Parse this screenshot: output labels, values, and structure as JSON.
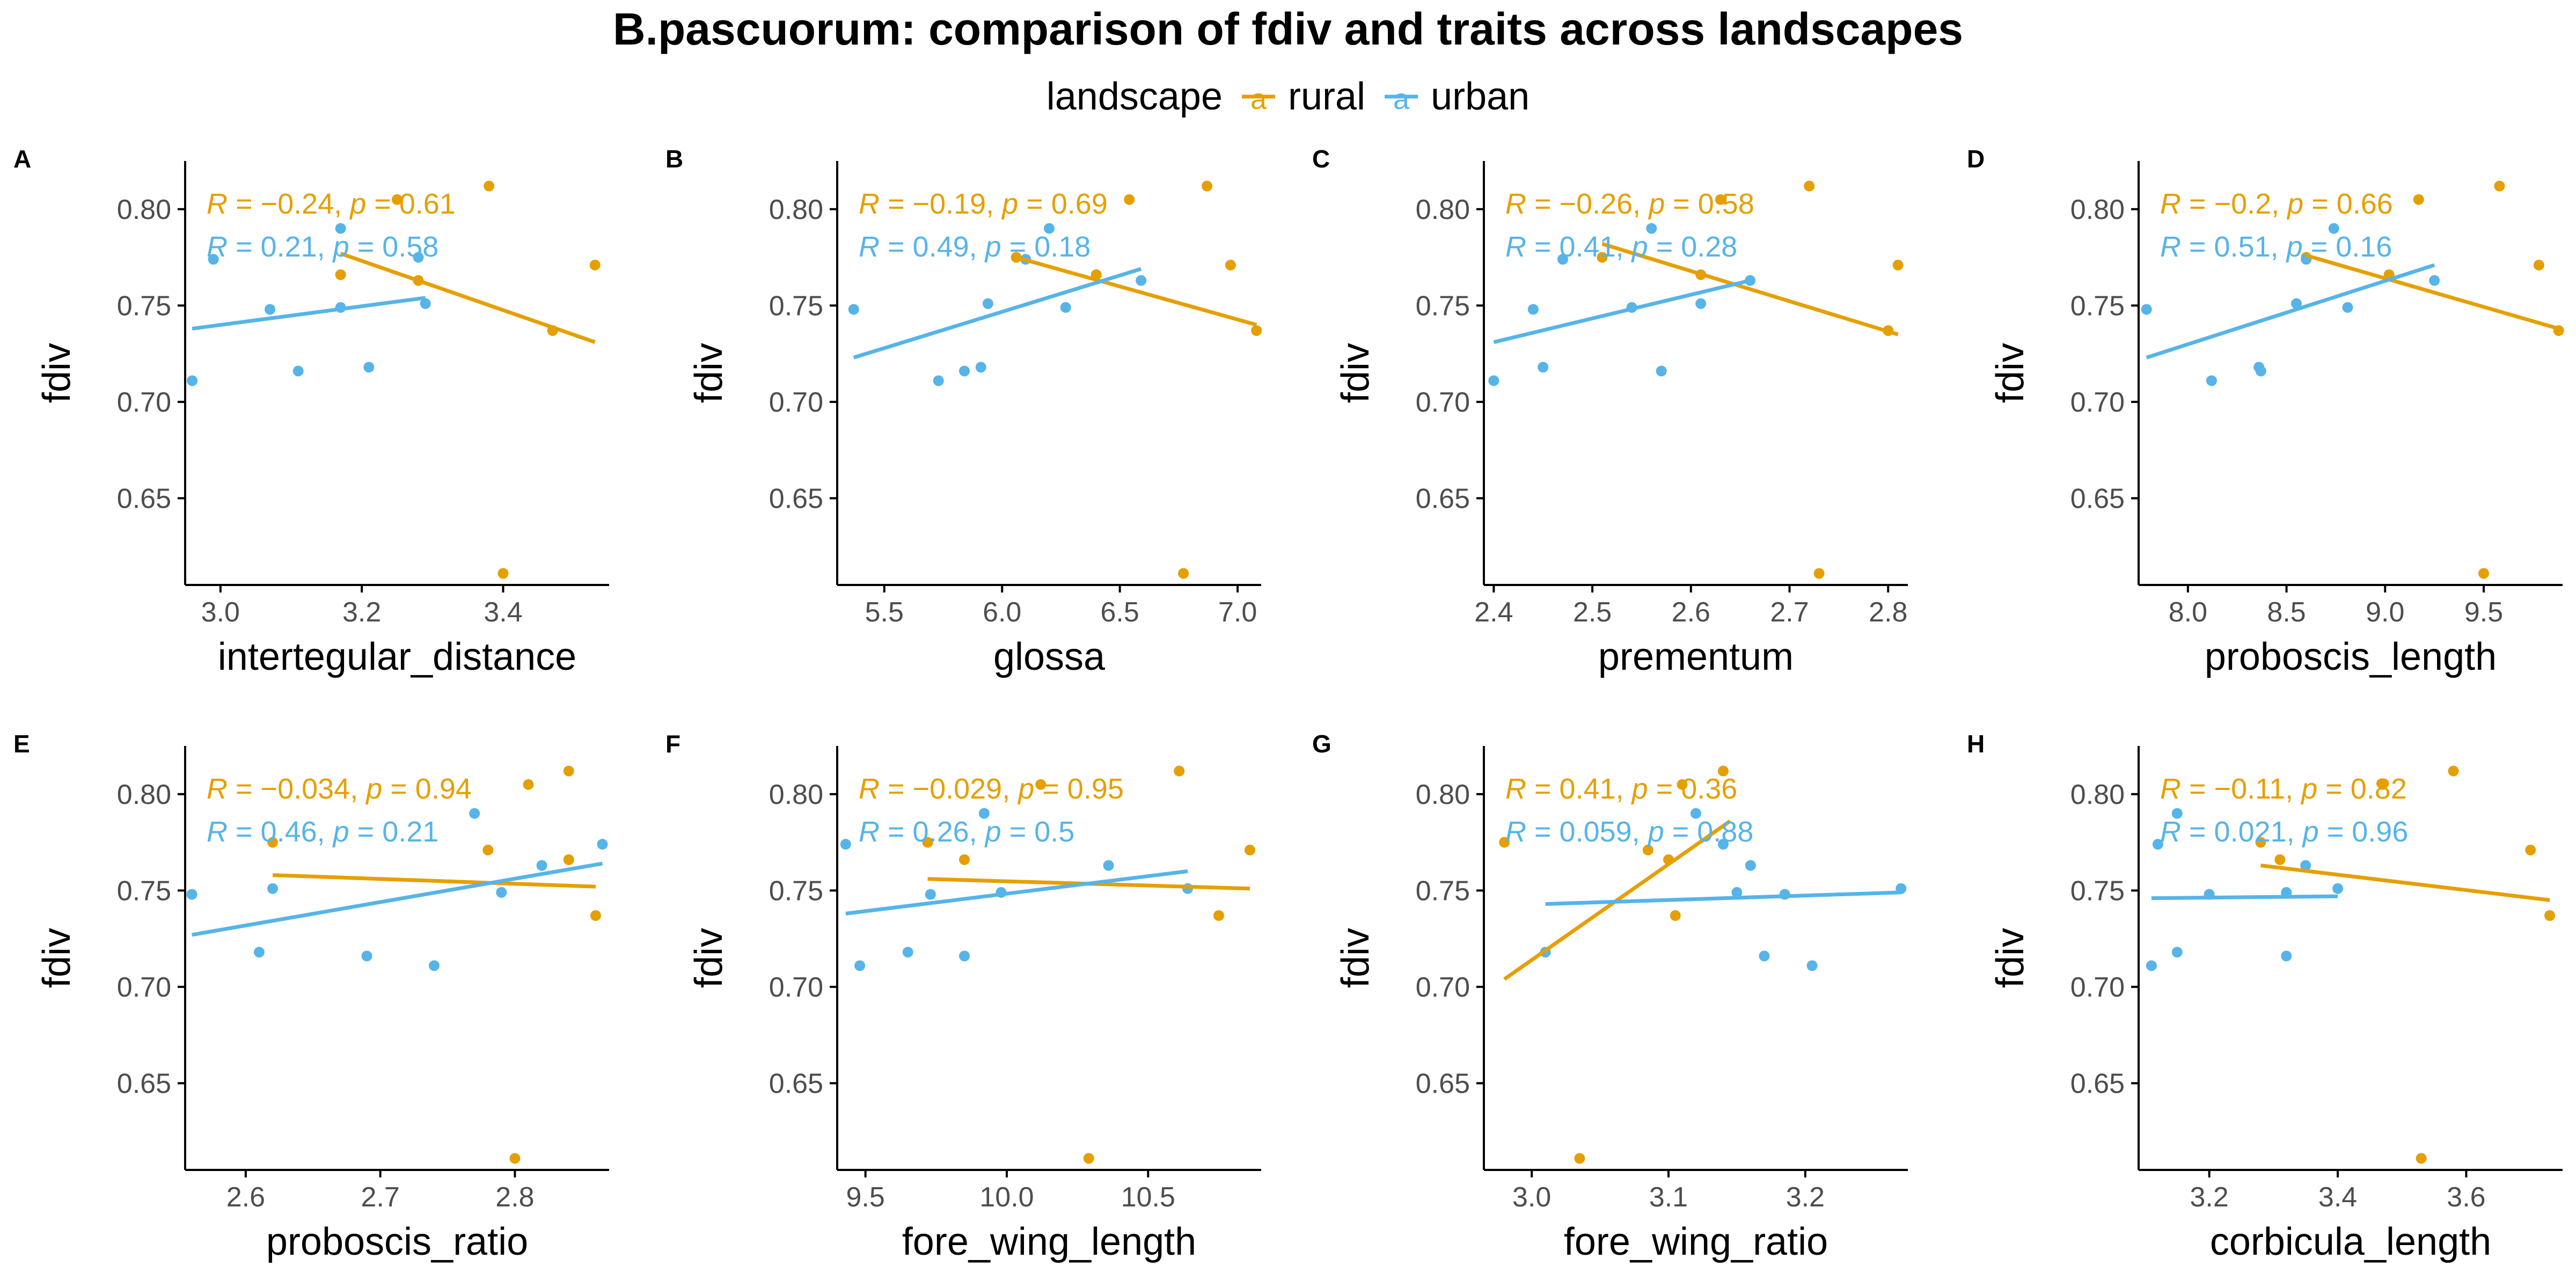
{
  "title": "B.pascuorum: comparison of fdiv and traits across landscapes",
  "legend": {
    "title": "landscape",
    "key_glyph": "a",
    "entries": [
      {
        "name": "rural",
        "color": "#E69F00"
      },
      {
        "name": "urban",
        "color": "#56B4E9"
      }
    ]
  },
  "colors": {
    "rural": "#E69F00",
    "urban": "#56B4E9",
    "axis": "#000000",
    "tick_label": "#4d4d4d"
  },
  "chart_data": [
    {
      "type": "scatter",
      "panel": "A",
      "xlabel": "intertegular_distance",
      "ylabel": "fdiv",
      "xlim": [
        2.95,
        3.55
      ],
      "ylim": [
        0.605,
        0.825
      ],
      "xticks": [
        3.0,
        3.2,
        3.4
      ],
      "xtick_labels": [
        "3.0",
        "3.2",
        "3.4"
      ],
      "yticks": [
        0.65,
        0.7,
        0.75,
        0.8
      ],
      "ytick_labels": [
        "0.65",
        "0.70",
        "0.75",
        "0.80"
      ],
      "series": [
        {
          "name": "rural",
          "R": "−0.24",
          "p": "0.61",
          "fit": [
            [
              3.17,
              0.777
            ],
            [
              3.53,
              0.731
            ]
          ],
          "points": [
            [
              3.17,
              0.766
            ],
            [
              3.25,
              0.805
            ],
            [
              3.28,
              0.763
            ],
            [
              3.38,
              0.812
            ],
            [
              3.4,
              0.611
            ],
            [
              3.47,
              0.737
            ],
            [
              3.53,
              0.771
            ]
          ]
        },
        {
          "name": "urban",
          "R": "0.21",
          "p": "0.58",
          "fit": [
            [
              2.96,
              0.738
            ],
            [
              3.29,
              0.754
            ]
          ],
          "points": [
            [
              2.96,
              0.711
            ],
            [
              2.99,
              0.774
            ],
            [
              3.07,
              0.748
            ],
            [
              3.11,
              0.716
            ],
            [
              3.17,
              0.79
            ],
            [
              3.17,
              0.749
            ],
            [
              3.21,
              0.718
            ],
            [
              3.28,
              0.775
            ],
            [
              3.29,
              0.751
            ]
          ]
        }
      ]
    },
    {
      "type": "scatter",
      "panel": "B",
      "xlabel": "glossa",
      "ylabel": "fdiv",
      "xlim": [
        5.3,
        7.1
      ],
      "ylim": [
        0.605,
        0.825
      ],
      "xticks": [
        5.5,
        6.0,
        6.5,
        7.0
      ],
      "xtick_labels": [
        "5.5",
        "6.0",
        "6.5",
        "7.0"
      ],
      "yticks": [
        0.65,
        0.7,
        0.75,
        0.8
      ],
      "ytick_labels": [
        "0.65",
        "0.70",
        "0.75",
        "0.80"
      ],
      "series": [
        {
          "name": "rural",
          "R": "−0.19",
          "p": "0.69",
          "fit": [
            [
              6.06,
              0.775
            ],
            [
              7.08,
              0.74
            ]
          ],
          "points": [
            [
              6.06,
              0.775
            ],
            [
              6.4,
              0.766
            ],
            [
              6.54,
              0.805
            ],
            [
              6.77,
              0.611
            ],
            [
              6.87,
              0.812
            ],
            [
              6.97,
              0.771
            ],
            [
              7.08,
              0.737
            ]
          ]
        },
        {
          "name": "urban",
          "R": "0.49",
          "p": "0.18",
          "fit": [
            [
              5.37,
              0.723
            ],
            [
              6.59,
              0.769
            ]
          ],
          "points": [
            [
              5.37,
              0.748
            ],
            [
              5.73,
              0.711
            ],
            [
              5.84,
              0.716
            ],
            [
              5.91,
              0.718
            ],
            [
              5.94,
              0.751
            ],
            [
              6.1,
              0.774
            ],
            [
              6.2,
              0.79
            ],
            [
              6.27,
              0.749
            ],
            [
              6.59,
              0.763
            ]
          ]
        }
      ]
    },
    {
      "type": "scatter",
      "panel": "C",
      "xlabel": "prementum",
      "ylabel": "fdiv",
      "xlim": [
        2.39,
        2.82
      ],
      "ylim": [
        0.605,
        0.825
      ],
      "xticks": [
        2.4,
        2.5,
        2.6,
        2.7,
        2.8
      ],
      "xtick_labels": [
        "2.4",
        "2.5",
        "2.6",
        "2.7",
        "2.8"
      ],
      "yticks": [
        0.65,
        0.7,
        0.75,
        0.8
      ],
      "ytick_labels": [
        "0.65",
        "0.70",
        "0.75",
        "0.80"
      ],
      "series": [
        {
          "name": "rural",
          "R": "−0.26",
          "p": "0.58",
          "fit": [
            [
              2.51,
              0.782
            ],
            [
              2.81,
              0.735
            ]
          ],
          "points": [
            [
              2.51,
              0.775
            ],
            [
              2.61,
              0.766
            ],
            [
              2.63,
              0.805
            ],
            [
              2.72,
              0.812
            ],
            [
              2.73,
              0.611
            ],
            [
              2.8,
              0.737
            ],
            [
              2.81,
              0.771
            ]
          ]
        },
        {
          "name": "urban",
          "R": "0.41",
          "p": "0.28",
          "fit": [
            [
              2.4,
              0.731
            ],
            [
              2.66,
              0.763
            ]
          ],
          "points": [
            [
              2.4,
              0.711
            ],
            [
              2.44,
              0.748
            ],
            [
              2.45,
              0.718
            ],
            [
              2.47,
              0.774
            ],
            [
              2.54,
              0.749
            ],
            [
              2.56,
              0.79
            ],
            [
              2.57,
              0.716
            ],
            [
              2.61,
              0.751
            ],
            [
              2.66,
              0.763
            ]
          ]
        }
      ]
    },
    {
      "type": "scatter",
      "panel": "D",
      "xlabel": "proboscis_length",
      "ylabel": "fdiv",
      "xlim": [
        7.75,
        9.9
      ],
      "ylim": [
        0.605,
        0.825
      ],
      "xticks": [
        8.0,
        8.5,
        9.0,
        9.5
      ],
      "xtick_labels": [
        "8.0",
        "8.5",
        "9.0",
        "9.5"
      ],
      "yticks": [
        0.65,
        0.7,
        0.75,
        0.8
      ],
      "ytick_labels": [
        "0.65",
        "0.70",
        "0.75",
        "0.80"
      ],
      "series": [
        {
          "name": "rural",
          "R": "−0.2",
          "p": "0.66",
          "fit": [
            [
              8.6,
              0.776
            ],
            [
              9.88,
              0.738
            ]
          ],
          "points": [
            [
              8.6,
              0.775
            ],
            [
              9.02,
              0.766
            ],
            [
              9.17,
              0.805
            ],
            [
              9.5,
              0.611
            ],
            [
              9.58,
              0.812
            ],
            [
              9.78,
              0.771
            ],
            [
              9.88,
              0.737
            ]
          ]
        },
        {
          "name": "urban",
          "R": "0.51",
          "p": "0.16",
          "fit": [
            [
              7.79,
              0.723
            ],
            [
              9.25,
              0.771
            ]
          ],
          "points": [
            [
              7.79,
              0.748
            ],
            [
              8.12,
              0.711
            ],
            [
              8.36,
              0.718
            ],
            [
              8.37,
              0.716
            ],
            [
              8.55,
              0.751
            ],
            [
              8.6,
              0.774
            ],
            [
              8.74,
              0.79
            ],
            [
              8.81,
              0.749
            ],
            [
              9.25,
              0.763
            ]
          ]
        }
      ]
    },
    {
      "type": "scatter",
      "panel": "E",
      "xlabel": "proboscis_ratio",
      "ylabel": "fdiv",
      "xlim": [
        2.555,
        2.87
      ],
      "ylim": [
        0.605,
        0.825
      ],
      "xticks": [
        2.6,
        2.7,
        2.8
      ],
      "xtick_labels": [
        "2.6",
        "2.7",
        "2.8"
      ],
      "yticks": [
        0.65,
        0.7,
        0.75,
        0.8
      ],
      "ytick_labels": [
        "0.65",
        "0.70",
        "0.75",
        "0.80"
      ],
      "series": [
        {
          "name": "rural",
          "R": "−0.034",
          "p": "0.94",
          "fit": [
            [
              2.62,
              0.758
            ],
            [
              2.86,
              0.752
            ]
          ],
          "points": [
            [
              2.62,
              0.775
            ],
            [
              2.78,
              0.771
            ],
            [
              2.8,
              0.611
            ],
            [
              2.81,
              0.805
            ],
            [
              2.84,
              0.812
            ],
            [
              2.84,
              0.766
            ],
            [
              2.86,
              0.737
            ]
          ]
        },
        {
          "name": "urban",
          "R": "0.46",
          "p": "0.21",
          "fit": [
            [
              2.56,
              0.727
            ],
            [
              2.865,
              0.764
            ]
          ],
          "points": [
            [
              2.56,
              0.748
            ],
            [
              2.61,
              0.718
            ],
            [
              2.62,
              0.751
            ],
            [
              2.69,
              0.716
            ],
            [
              2.74,
              0.711
            ],
            [
              2.77,
              0.79
            ],
            [
              2.79,
              0.749
            ],
            [
              2.82,
              0.763
            ],
            [
              2.865,
              0.774
            ]
          ]
        }
      ]
    },
    {
      "type": "scatter",
      "panel": "F",
      "xlabel": "fore_wing_length",
      "ylabel": "fdiv",
      "xlim": [
        9.4,
        10.9
      ],
      "ylim": [
        0.605,
        0.825
      ],
      "xticks": [
        9.5,
        10.0,
        10.5
      ],
      "xtick_labels": [
        "9.5",
        "10.0",
        "10.5"
      ],
      "yticks": [
        0.65,
        0.7,
        0.75,
        0.8
      ],
      "ytick_labels": [
        "0.65",
        "0.70",
        "0.75",
        "0.80"
      ],
      "series": [
        {
          "name": "rural",
          "R": "−0.029",
          "p": "0.95",
          "fit": [
            [
              9.72,
              0.756
            ],
            [
              10.86,
              0.751
            ]
          ],
          "points": [
            [
              9.72,
              0.775
            ],
            [
              9.85,
              0.766
            ],
            [
              10.12,
              0.805
            ],
            [
              10.29,
              0.611
            ],
            [
              10.61,
              0.812
            ],
            [
              10.75,
              0.737
            ],
            [
              10.86,
              0.771
            ]
          ]
        },
        {
          "name": "urban",
          "R": "0.26",
          "p": "0.5",
          "fit": [
            [
              9.43,
              0.738
            ],
            [
              10.64,
              0.76
            ]
          ],
          "points": [
            [
              9.43,
              0.774
            ],
            [
              9.48,
              0.711
            ],
            [
              9.65,
              0.718
            ],
            [
              9.73,
              0.748
            ],
            [
              9.85,
              0.716
            ],
            [
              9.92,
              0.79
            ],
            [
              9.98,
              0.749
            ],
            [
              10.36,
              0.763
            ],
            [
              10.64,
              0.751
            ]
          ]
        }
      ]
    },
    {
      "type": "scatter",
      "panel": "G",
      "xlabel": "fore_wing_ratio",
      "ylabel": "fdiv",
      "xlim": [
        2.965,
        3.275
      ],
      "ylim": [
        0.605,
        0.825
      ],
      "xticks": [
        3.0,
        3.1,
        3.2
      ],
      "xtick_labels": [
        "3.0",
        "3.1",
        "3.2"
      ],
      "yticks": [
        0.65,
        0.7,
        0.75,
        0.8
      ],
      "ytick_labels": [
        "0.65",
        "0.70",
        "0.75",
        "0.80"
      ],
      "series": [
        {
          "name": "rural",
          "R": "0.41",
          "p": "0.36",
          "fit": [
            [
              2.98,
              0.704
            ],
            [
              3.145,
              0.786
            ]
          ],
          "points": [
            [
              2.98,
              0.775
            ],
            [
              3.035,
              0.611
            ],
            [
              3.085,
              0.771
            ],
            [
              3.1,
              0.766
            ],
            [
              3.105,
              0.737
            ],
            [
              3.11,
              0.805
            ],
            [
              3.14,
              0.812
            ]
          ]
        },
        {
          "name": "urban",
          "R": "0.059",
          "p": "0.88",
          "fit": [
            [
              3.01,
              0.743
            ],
            [
              3.27,
              0.749
            ]
          ],
          "points": [
            [
              3.01,
              0.718
            ],
            [
              3.12,
              0.79
            ],
            [
              3.14,
              0.774
            ],
            [
              3.15,
              0.749
            ],
            [
              3.16,
              0.763
            ],
            [
              3.17,
              0.716
            ],
            [
              3.185,
              0.748
            ],
            [
              3.205,
              0.711
            ],
            [
              3.27,
              0.751
            ]
          ]
        }
      ]
    },
    {
      "type": "scatter",
      "panel": "H",
      "xlabel": "corbicula_length",
      "ylabel": "fdiv",
      "xlim": [
        3.09,
        3.75
      ],
      "ylim": [
        0.605,
        0.825
      ],
      "xticks": [
        3.2,
        3.4,
        3.6
      ],
      "xtick_labels": [
        "3.2",
        "3.4",
        "3.6"
      ],
      "yticks": [
        0.65,
        0.7,
        0.75,
        0.8
      ],
      "ytick_labels": [
        "0.65",
        "0.70",
        "0.75",
        "0.80"
      ],
      "series": [
        {
          "name": "rural",
          "R": "−0.11",
          "p": "0.82",
          "fit": [
            [
              3.28,
              0.763
            ],
            [
              3.73,
              0.745
            ]
          ],
          "points": [
            [
              3.28,
              0.775
            ],
            [
              3.31,
              0.766
            ],
            [
              3.47,
              0.805
            ],
            [
              3.53,
              0.611
            ],
            [
              3.58,
              0.812
            ],
            [
              3.7,
              0.771
            ],
            [
              3.73,
              0.737
            ]
          ]
        },
        {
          "name": "urban",
          "R": "0.021",
          "p": "0.96",
          "fit": [
            [
              3.11,
              0.746
            ],
            [
              3.4,
              0.747
            ]
          ],
          "points": [
            [
              3.11,
              0.711
            ],
            [
              3.12,
              0.774
            ],
            [
              3.15,
              0.79
            ],
            [
              3.15,
              0.718
            ],
            [
              3.2,
              0.748
            ],
            [
              3.32,
              0.749
            ],
            [
              3.32,
              0.716
            ],
            [
              3.35,
              0.763
            ],
            [
              3.4,
              0.751
            ]
          ]
        }
      ]
    }
  ]
}
